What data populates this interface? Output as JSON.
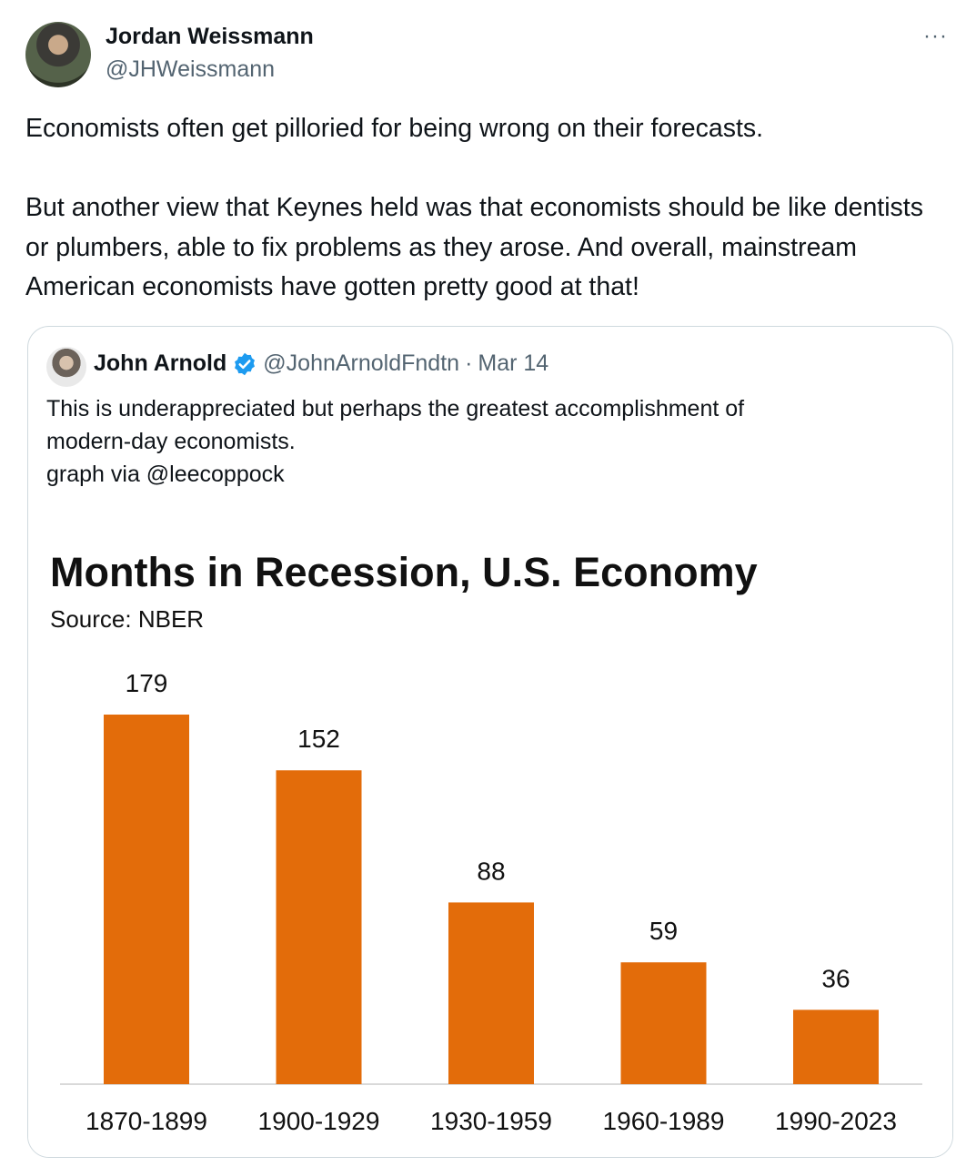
{
  "tweet": {
    "author_name": "Jordan Weissmann",
    "author_handle": "@JHWeissmann",
    "more_label": "···",
    "text": [
      "Economists often get pilloried for being wrong on their forecasts.",
      "But another view that Keynes held was that economists should be like dentists or plumbers, able to fix problems as they arose. And overall, mainstream American economists have gotten pretty good at that!"
    ]
  },
  "quote": {
    "author_name": "John Arnold",
    "verified_icon": "verified-badge-icon",
    "author_handle": "@JohnArnoldFndtn",
    "separator": "·",
    "date": "Mar 14",
    "text_lines": [
      "This is underappreciated but perhaps the greatest accomplishment of",
      "modern-day economists.",
      "graph via @leecoppock"
    ]
  },
  "colors": {
    "bar": "#e36c0a",
    "verified": "#1d9bf0",
    "axis": "#d9d9d9"
  },
  "chart_data": {
    "type": "bar",
    "title": "Months in Recession, U.S. Economy",
    "subtitle": "Source: NBER",
    "categories": [
      "1870-1899",
      "1900-1929",
      "1930-1959",
      "1960-1989",
      "1990-2023"
    ],
    "values": [
      179,
      152,
      88,
      59,
      36
    ],
    "data_labels": [
      "179",
      "152",
      "88",
      "59",
      "36"
    ],
    "xlabel": "",
    "ylabel": "",
    "ylim": [
      0,
      179
    ],
    "grid": false,
    "legend": "none"
  }
}
